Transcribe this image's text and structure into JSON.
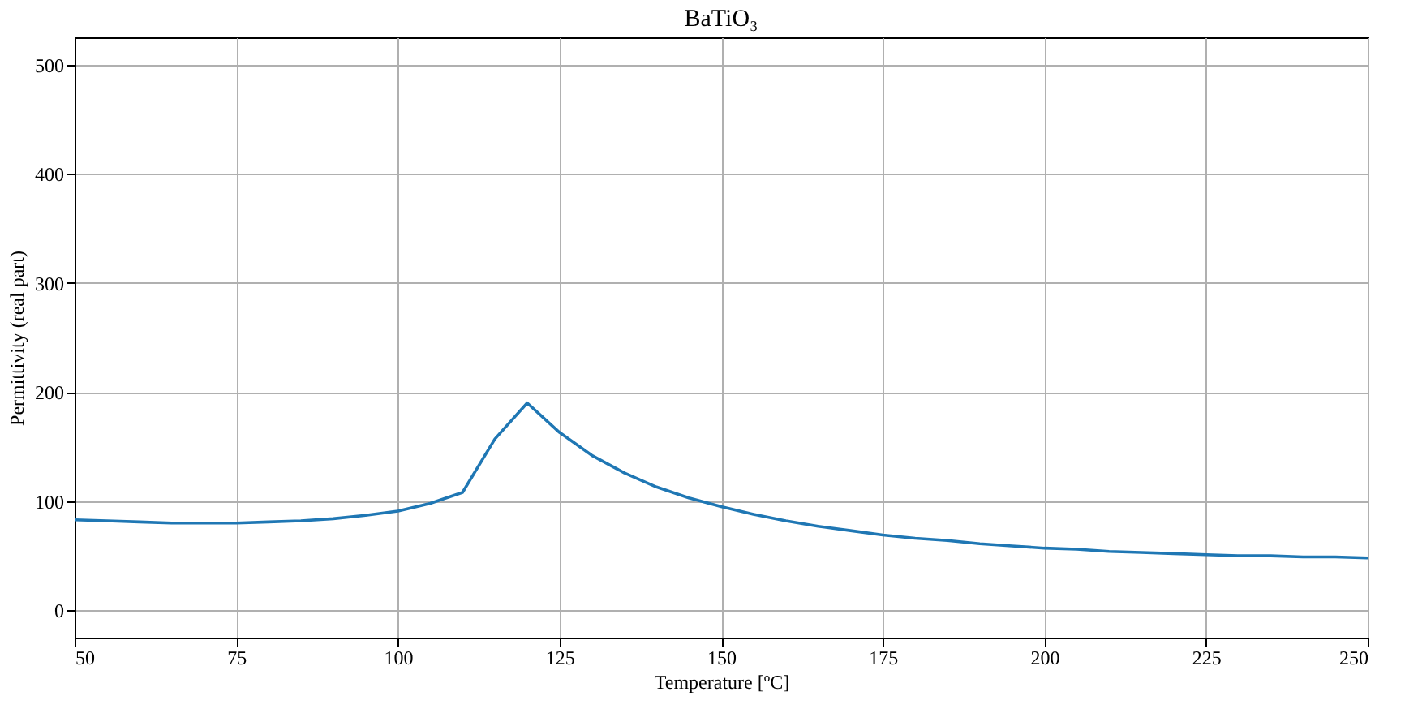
{
  "chart_data": {
    "type": "line",
    "title": "BaTiO₃",
    "xlabel": "Temperature [ºC]",
    "ylabel": "Permittivity (real part)",
    "x": [
      50,
      55,
      60,
      65,
      70,
      75,
      80,
      85,
      90,
      95,
      100,
      105,
      110,
      115,
      120,
      125,
      130,
      135,
      140,
      145,
      150,
      155,
      160,
      165,
      170,
      175,
      180,
      185,
      190,
      195,
      200,
      205,
      210,
      215,
      220,
      225,
      230,
      235,
      240,
      245,
      250
    ],
    "series": [
      {
        "color": "#1f77b4",
        "values": [
          83,
          82,
          81,
          80,
          80,
          80,
          81,
          82,
          84,
          87,
          91,
          98,
          108,
          157,
          190,
          163,
          142,
          126,
          113,
          103,
          95,
          88,
          82,
          77,
          73,
          69,
          66,
          64,
          61,
          59,
          57,
          56,
          54,
          53,
          52,
          51,
          50,
          50,
          49,
          49,
          48
        ]
      }
    ],
    "xlim": [
      50,
      250
    ],
    "xticks": [
      50,
      75,
      100,
      125,
      150,
      175,
      200,
      225,
      250
    ],
    "ylim": [
      -25,
      525
    ],
    "yticks": [
      0,
      100,
      200,
      300,
      400,
      500
    ],
    "grid": true,
    "marker": "none",
    "line_style": "solid"
  }
}
